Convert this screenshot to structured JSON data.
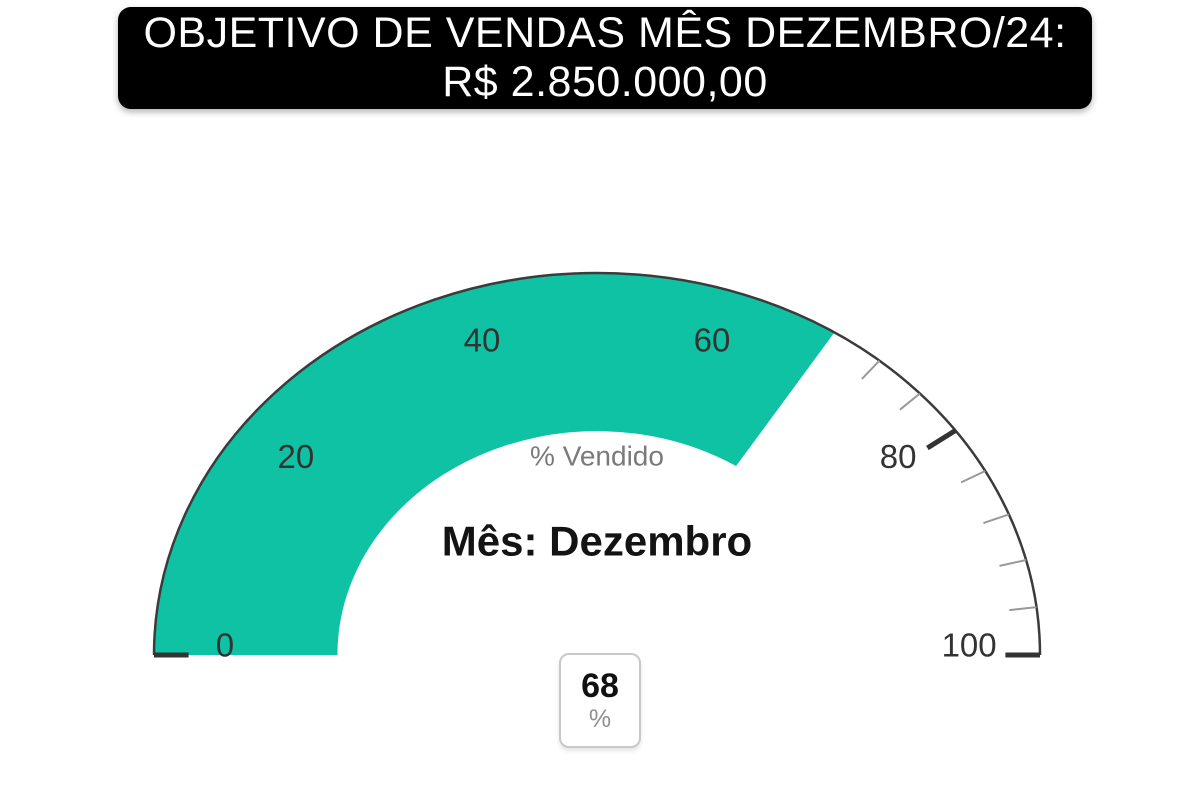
{
  "header": {
    "title_line1": "OBJETIVO DE VENDAS MÊS DEZEMBRO/24:",
    "title_line2": "R$ 2.850.000,00",
    "background_color": "#000000",
    "text_color": "#ffffff"
  },
  "chart_data": {
    "type": "gauge",
    "title": "% Vendido",
    "center_label": "Mês: Dezembro",
    "value": 68,
    "unit": "%",
    "min": 0,
    "max": 100,
    "major_ticks": [
      0,
      20,
      40,
      60,
      80,
      100
    ],
    "minor_tick_step": 4,
    "fill_color": "#0fc2a4",
    "track_color": "#ffffff",
    "axis_line_color": "#3b3b3b",
    "major_tick_color": "#333333",
    "minor_tick_color": "#999999",
    "tick_label_color": "#333333",
    "title_color": "#7a7a7a",
    "center_label_color": "#131313",
    "value_color": "#111111",
    "unit_color": "#8f8f8f"
  }
}
